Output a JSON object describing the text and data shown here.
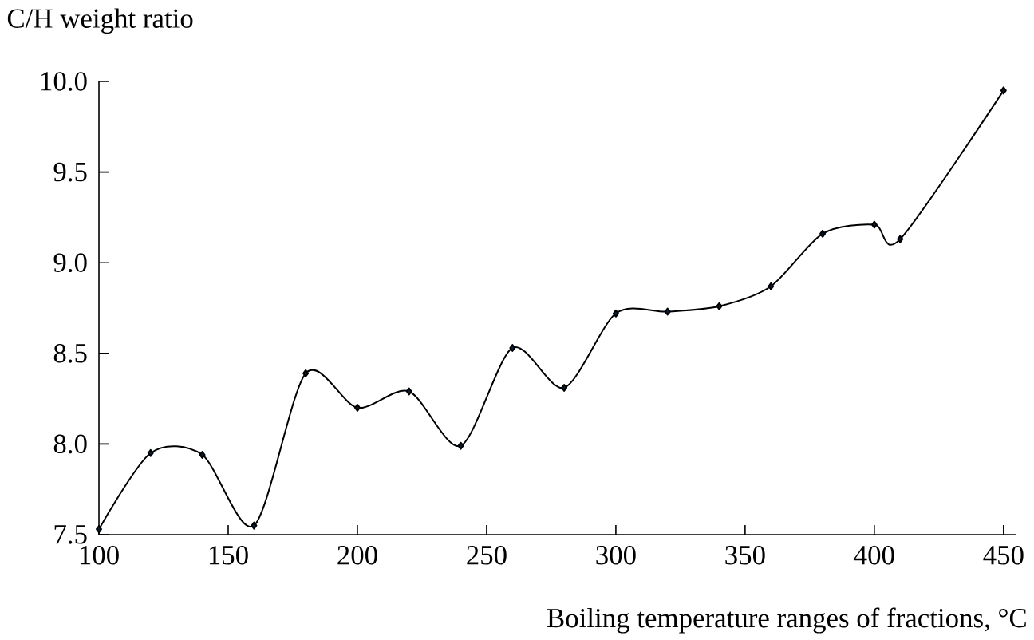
{
  "chart_data": {
    "type": "line",
    "xlabel": "Boiling temperature ranges of fractions, °C",
    "ylabel": "C/H weight ratio",
    "x": [
      100,
      120,
      140,
      160,
      180,
      200,
      220,
      240,
      260,
      280,
      300,
      320,
      340,
      360,
      380,
      400,
      410,
      450
    ],
    "series": [
      {
        "color": "#000000",
        "values": [
          7.53,
          7.95,
          7.94,
          7.55,
          8.39,
          8.2,
          8.29,
          7.99,
          8.53,
          8.31,
          8.72,
          8.73,
          8.76,
          8.87,
          9.16,
          9.21,
          9.13,
          9.95
        ]
      }
    ],
    "xlim": [
      100,
      455
    ],
    "ylim": [
      7.5,
      10.0
    ],
    "xticks": [
      100,
      150,
      200,
      250,
      300,
      350,
      400,
      450
    ],
    "yticks": [
      {
        "value": 7.5,
        "label": "7.5"
      },
      {
        "value": 8.0,
        "label": "8.0"
      },
      {
        "value": 8.5,
        "label": "8.5"
      },
      {
        "value": 9.0,
        "label": "9.0"
      },
      {
        "value": 9.5,
        "label": "9.5"
      },
      {
        "value": 10.0,
        "label": "10.0"
      }
    ],
    "marker": "diamond",
    "line_style": "solid"
  }
}
